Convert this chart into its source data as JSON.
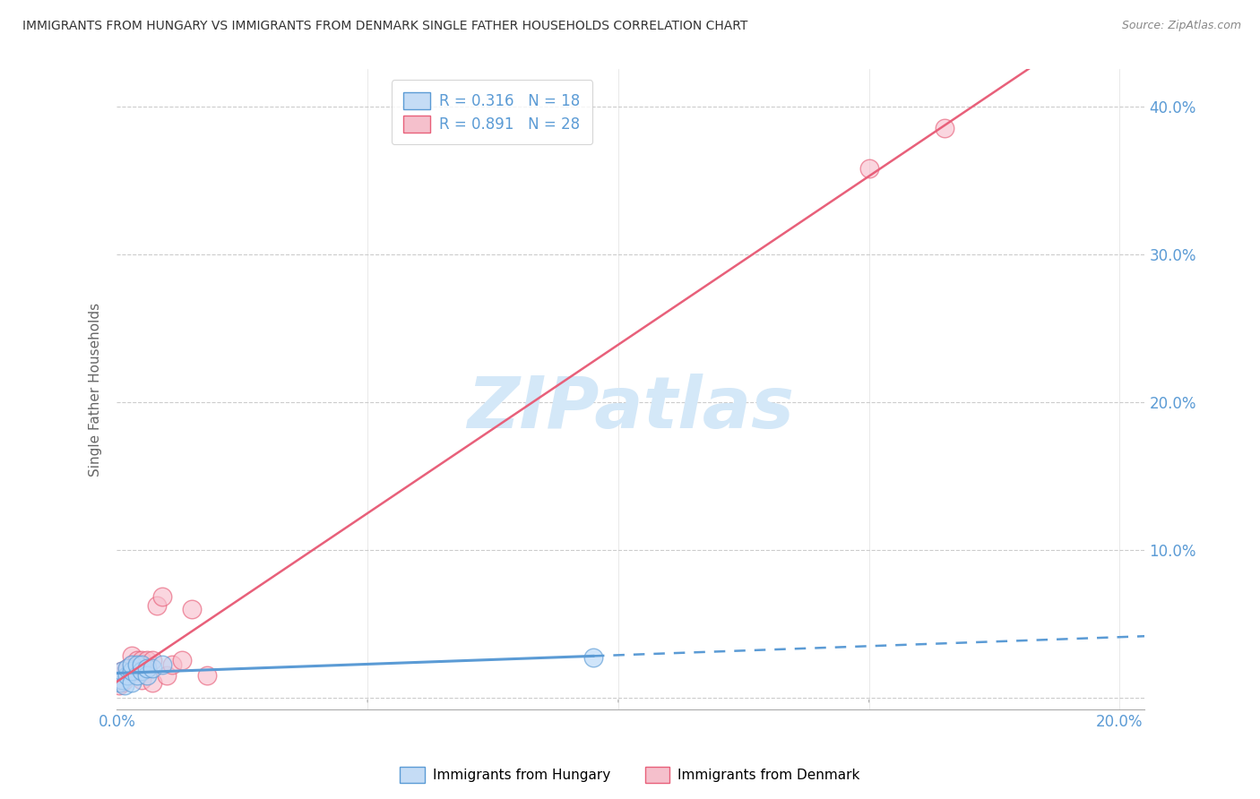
{
  "title": "IMMIGRANTS FROM HUNGARY VS IMMIGRANTS FROM DENMARK SINGLE FATHER HOUSEHOLDS CORRELATION CHART",
  "source": "Source: ZipAtlas.com",
  "ylabel": "Single Father Households",
  "ytick_vals": [
    0.0,
    0.1,
    0.2,
    0.3,
    0.4
  ],
  "ytick_labels": [
    "",
    "10.0%",
    "20.0%",
    "30.0%",
    "40.0%"
  ],
  "xtick_vals": [
    0.0,
    0.05,
    0.1,
    0.15,
    0.2
  ],
  "xlim": [
    0.0,
    0.205
  ],
  "ylim": [
    -0.008,
    0.425
  ],
  "legend_line1": "R = 0.316   N = 18",
  "legend_line2": "R = 0.891   N = 28",
  "color_hungary_fill": "#B8D8F8",
  "color_hungary_edge": "#5B9BD5",
  "color_denmark_fill": "#F8C0CE",
  "color_denmark_edge": "#E8607A",
  "color_hungary_trendline": "#5B9BD5",
  "color_denmark_trendline": "#E8607A",
  "color_axis_text": "#5B9BD5",
  "color_legend_text": "#5B9BD5",
  "watermark_text": "ZIPatlas",
  "watermark_color": "#D4E8F8",
  "legend_patch_hungary": "#C5DCF5",
  "legend_patch_denmark": "#F5C0CC",
  "hungary_x": [
    0.0005,
    0.001,
    0.001,
    0.0015,
    0.002,
    0.002,
    0.003,
    0.003,
    0.003,
    0.004,
    0.004,
    0.005,
    0.005,
    0.006,
    0.006,
    0.007,
    0.009,
    0.095
  ],
  "hungary_y": [
    0.01,
    0.012,
    0.018,
    0.008,
    0.015,
    0.02,
    0.01,
    0.018,
    0.022,
    0.015,
    0.022,
    0.018,
    0.022,
    0.015,
    0.02,
    0.02,
    0.022,
    0.027
  ],
  "denmark_x": [
    0.0004,
    0.0005,
    0.001,
    0.001,
    0.001,
    0.0015,
    0.002,
    0.002,
    0.003,
    0.003,
    0.003,
    0.004,
    0.004,
    0.005,
    0.005,
    0.006,
    0.006,
    0.007,
    0.007,
    0.008,
    0.009,
    0.01,
    0.011,
    0.013,
    0.015,
    0.018,
    0.15,
    0.165
  ],
  "denmark_y": [
    0.008,
    0.012,
    0.01,
    0.015,
    0.018,
    0.012,
    0.015,
    0.02,
    0.018,
    0.022,
    0.028,
    0.018,
    0.025,
    0.012,
    0.025,
    0.02,
    0.025,
    0.01,
    0.025,
    0.062,
    0.068,
    0.015,
    0.022,
    0.025,
    0.06,
    0.015,
    0.358,
    0.385
  ]
}
